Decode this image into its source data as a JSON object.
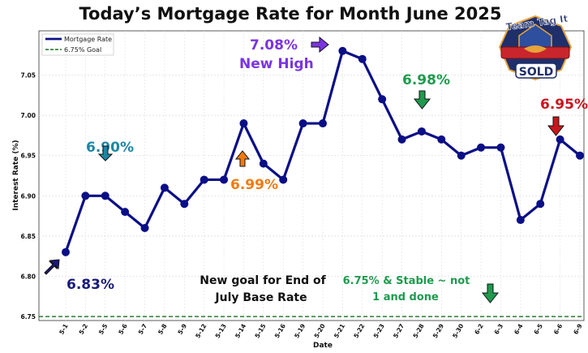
{
  "chart_data": {
    "type": "line",
    "title": "Today’s Mortgage Rate for Month June 2025",
    "xlabel": "Date",
    "ylabel": "Interest Rate (%)",
    "ylim": [
      6.745,
      7.105
    ],
    "yticks": [
      "6.75",
      "6.80",
      "6.85",
      "6.90",
      "6.95",
      "7.00",
      "7.05"
    ],
    "grid": true,
    "legend_position": "top-left",
    "categories": [
      "5-1",
      "5-2",
      "5-5",
      "5-6",
      "5-7",
      "5-8",
      "5-9",
      "5-12",
      "5-13",
      "5-14",
      "5-15",
      "5-16",
      "5-19",
      "5-20",
      "5-21",
      "5-22",
      "5-23",
      "5-27",
      "5-28",
      "5-29",
      "5-30",
      "6-2",
      "6-3",
      "6-4",
      "6-5",
      "6-6",
      "6-9"
    ],
    "series": [
      {
        "name": "Mortgage Rate",
        "color": "#0b0f86",
        "values": [
          6.83,
          6.9,
          6.9,
          6.88,
          6.86,
          6.91,
          6.89,
          6.92,
          6.92,
          6.99,
          6.94,
          6.92,
          6.99,
          6.99,
          7.08,
          7.07,
          7.02,
          6.97,
          6.98,
          6.97,
          6.95,
          6.96,
          6.96,
          6.87,
          6.89,
          6.97,
          6.95
        ]
      }
    ],
    "reference_line": {
      "name": "6.75% Goal",
      "value": 6.75,
      "color": "#1f6e1f"
    },
    "annotations": [
      {
        "text": "6.83%",
        "color": "#1a1a7a",
        "arrow": "up-right"
      },
      {
        "text": "6.90%",
        "color": "#1c86a3",
        "arrow": "down"
      },
      {
        "text": "6.99%",
        "color": "#f07a12",
        "arrow": "up"
      },
      {
        "lines": [
          "7.08%",
          "New High"
        ],
        "color": "#7a35e0",
        "arrow": "right"
      },
      {
        "text": "6.98%",
        "color": "#1f9a4e",
        "arrow": "down"
      },
      {
        "text": "6.95%",
        "color": "#c8161c",
        "arrow": "down"
      },
      {
        "lines": [
          "New goal for End of",
          "July Base Rate"
        ],
        "color": "#111111"
      },
      {
        "lines": [
          "6.75% & Stable ~ not",
          "1 and done"
        ],
        "color": "#1f9a4e",
        "arrow": "down"
      }
    ]
  },
  "logo": {
    "top_text": "Team Tag It",
    "bottom_text": "SOLD",
    "colors": {
      "navy": "#1f2f6b",
      "red": "#c8262c",
      "gold": "#e7a33a",
      "pink": "#e0627e"
    }
  }
}
